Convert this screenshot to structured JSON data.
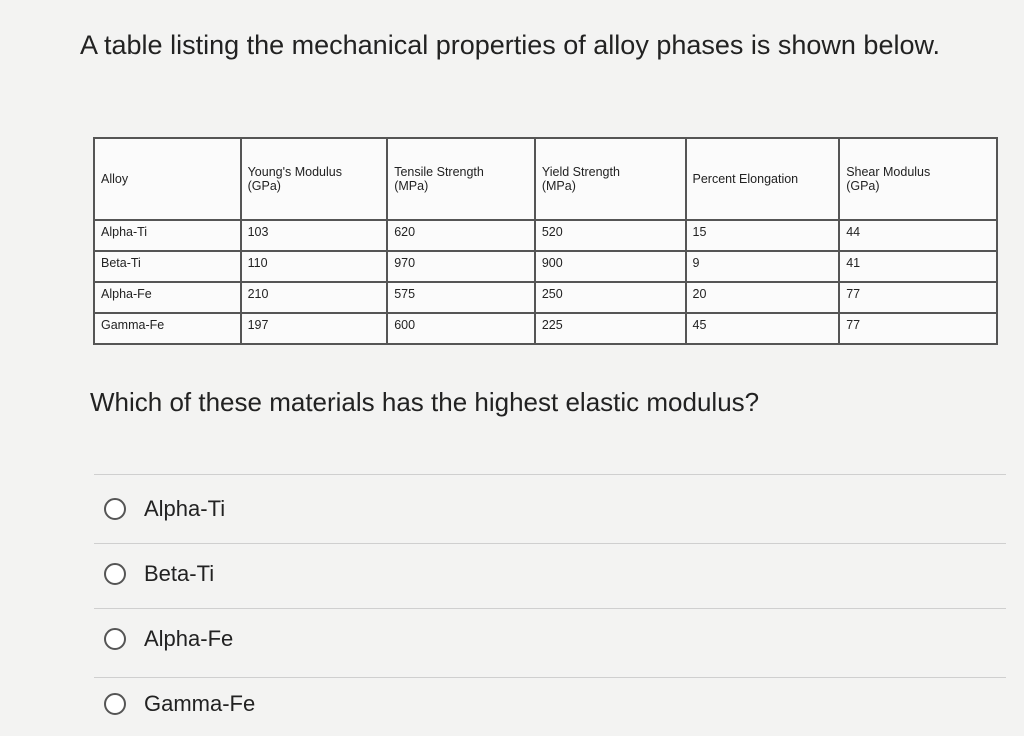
{
  "intro": "A table listing the mechanical properties of alloy phases is shown below.",
  "table": {
    "header": [
      [
        "Alloy"
      ],
      [
        "Young's Modulus",
        "(GPa)"
      ],
      [
        "Tensile Strength",
        "(MPa)"
      ],
      [
        "Yield Strength",
        "(MPa)"
      ],
      [
        "Percent Elongation"
      ],
      [
        "Shear Modulus",
        "(GPa)"
      ]
    ],
    "rows": [
      [
        "Alpha-Ti",
        "103",
        "620",
        "520",
        "15",
        "44"
      ],
      [
        "Beta-Ti",
        "110",
        "970",
        "900",
        "9",
        "41"
      ],
      [
        "Alpha-Fe",
        "210",
        "575",
        "250",
        "20",
        "77"
      ],
      [
        "Gamma-Fe",
        "197",
        "600",
        "225",
        "45",
        "77"
      ]
    ]
  },
  "question": "Which of these materials has the highest elastic modulus?",
  "options": [
    "Alpha-Ti",
    "Beta-Ti",
    "Alpha-Fe",
    "Gamma-Fe"
  ]
}
